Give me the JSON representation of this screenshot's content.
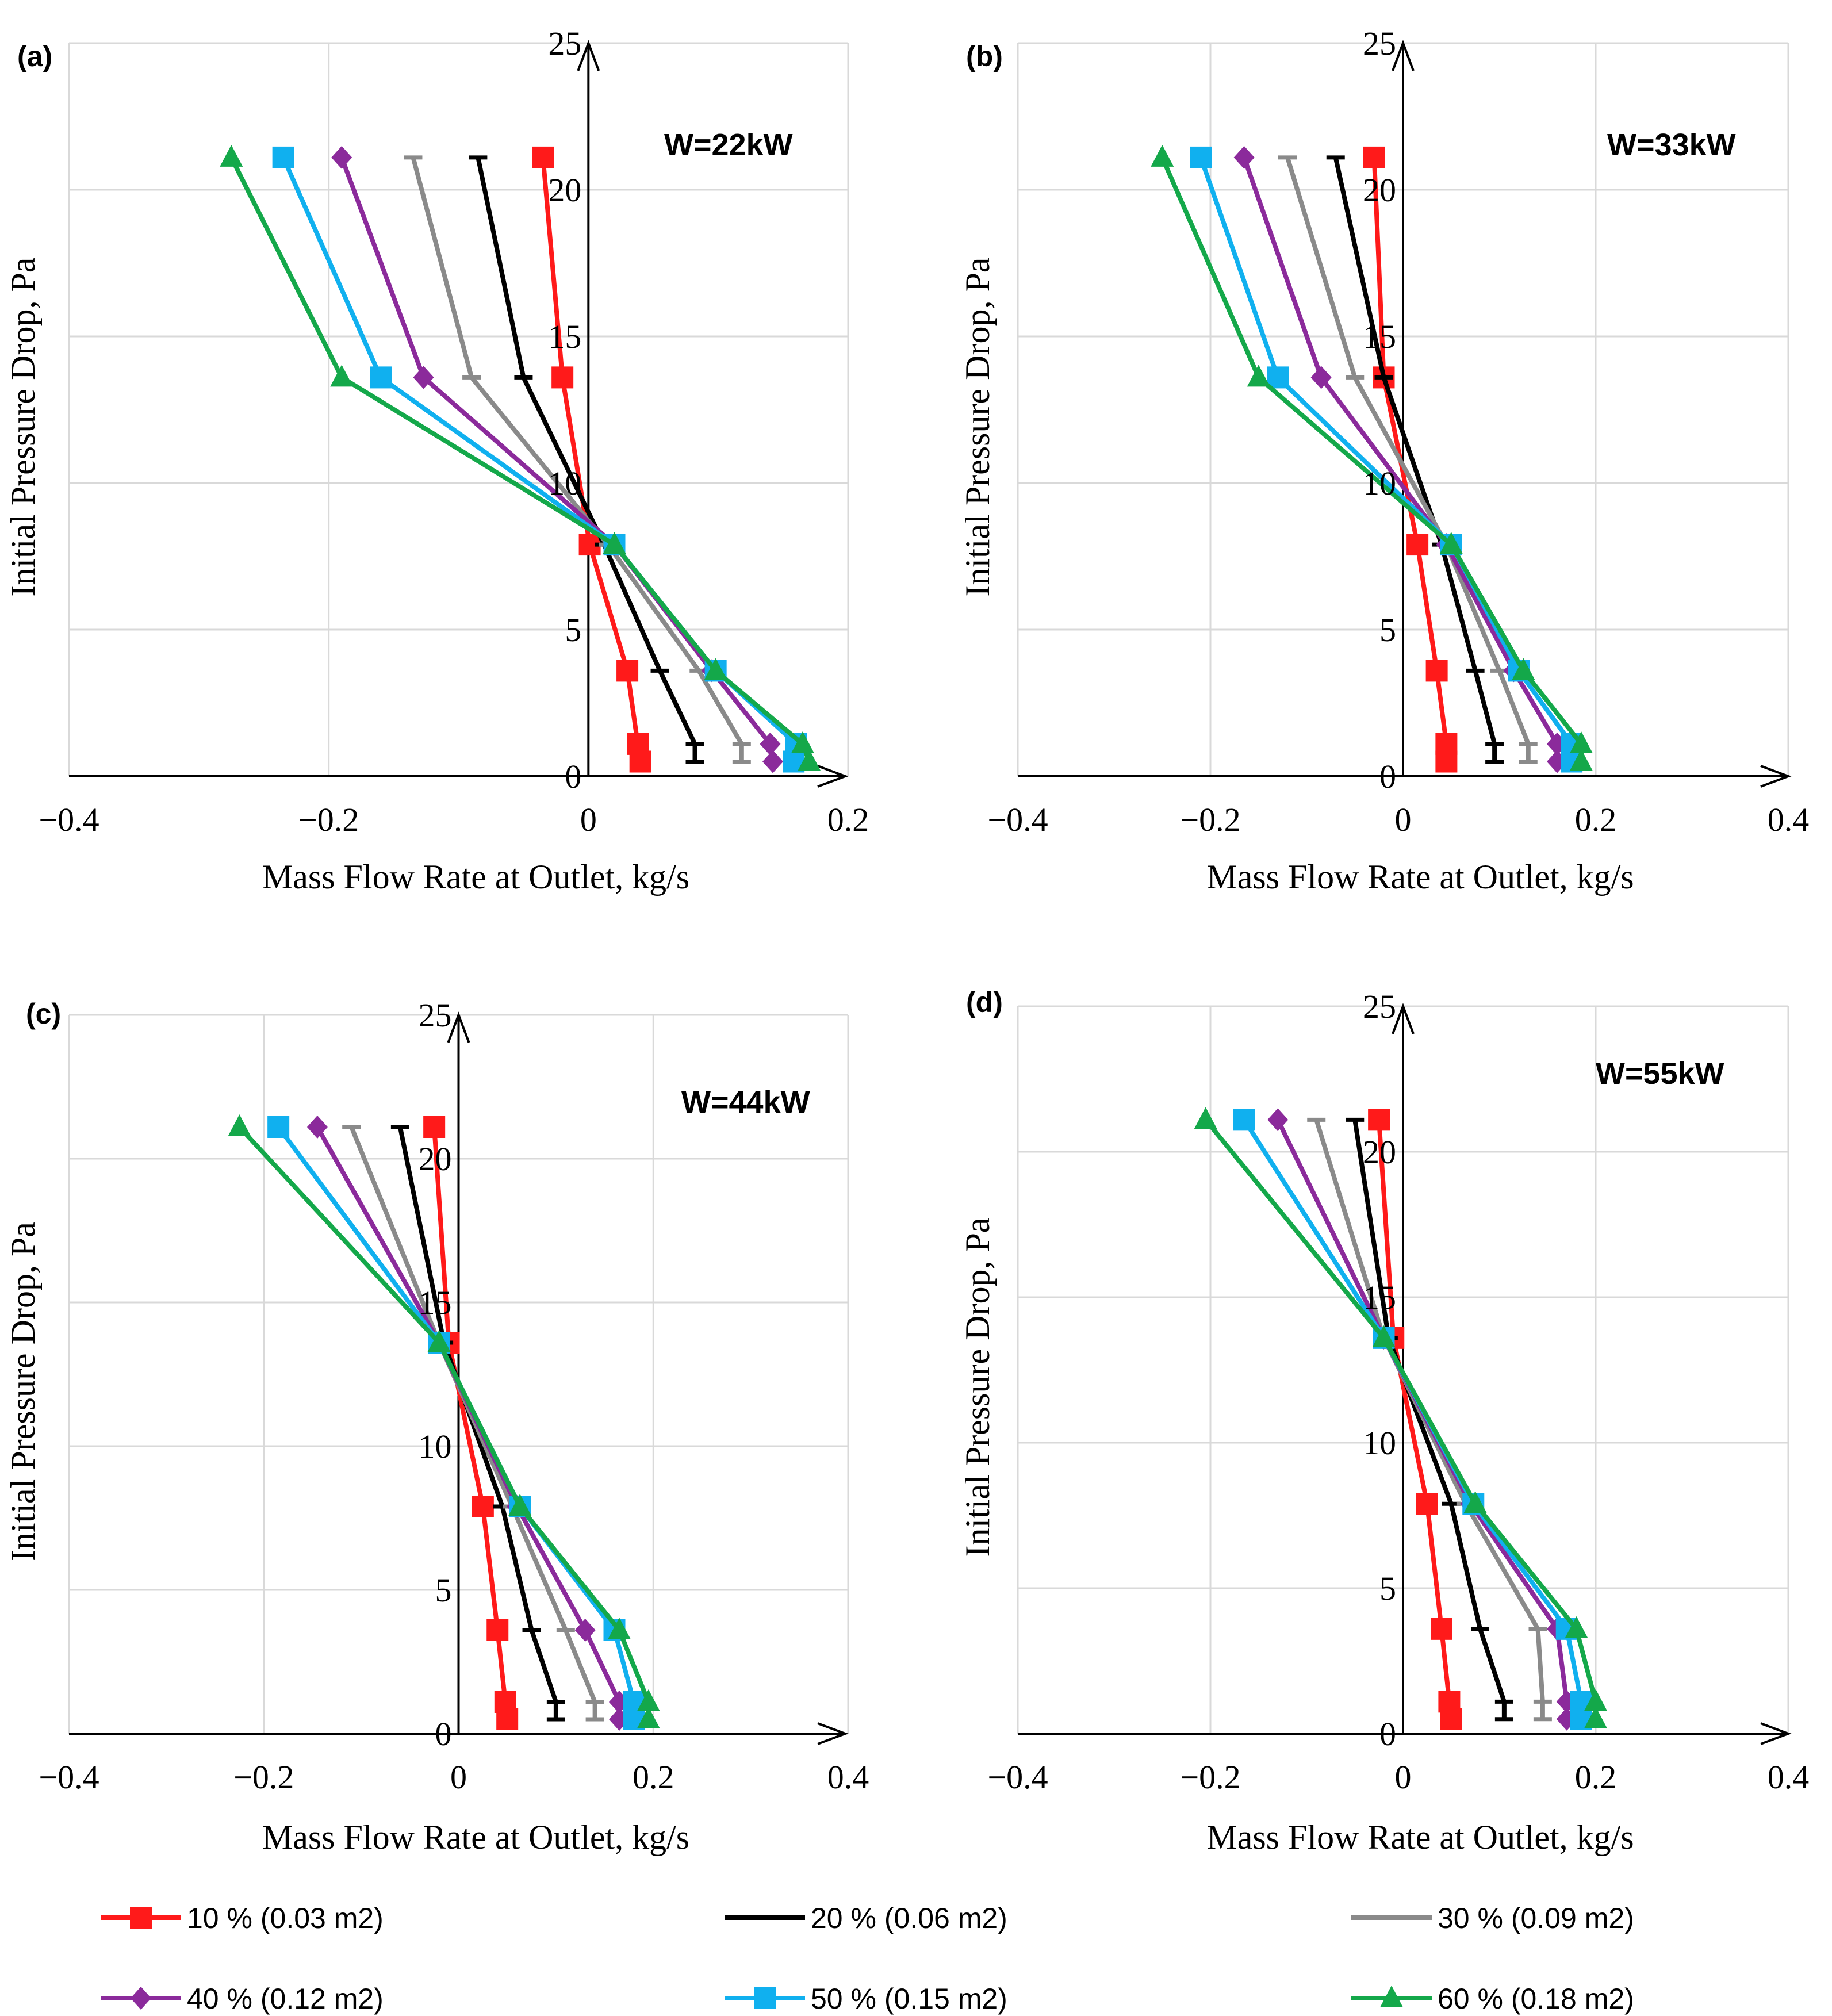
{
  "chart_data": [
    {
      "type": "line",
      "panel_label": "(a)",
      "annotation": "W=22kW",
      "xlabel": "Mass Flow Rate at Outlet, kg/s",
      "ylabel": "Initial Pressure Drop, Pa",
      "xlim": [
        -0.4,
        0.2
      ],
      "ylim": [
        0,
        25
      ],
      "x_ticks": [
        "−0.4",
        "−0.2",
        "0",
        "0.2"
      ],
      "y_ticks": [
        "0",
        "5",
        "10",
        "15",
        "20",
        "25"
      ],
      "grid": true,
      "series": [
        {
          "name": "10 % (0.03 m2)",
          "points": [
            [
              -0.035,
              21.1
            ],
            [
              -0.02,
              13.6
            ],
            [
              0.001,
              7.9
            ],
            [
              0.03,
              3.6
            ],
            [
              0.038,
              1.1
            ],
            [
              0.04,
              0.5
            ]
          ]
        },
        {
          "name": "20 % (0.06 m2)",
          "points": [
            [
              -0.085,
              21.1
            ],
            [
              -0.05,
              13.6
            ],
            [
              0.012,
              7.9
            ],
            [
              0.055,
              3.6
            ],
            [
              0.082,
              1.1
            ],
            [
              0.082,
              0.5
            ]
          ]
        },
        {
          "name": "30 % (0.09 m2)",
          "points": [
            [
              -0.135,
              21.1
            ],
            [
              -0.09,
              13.6
            ],
            [
              0.015,
              7.9
            ],
            [
              0.085,
              3.6
            ],
            [
              0.118,
              1.1
            ],
            [
              0.118,
              0.5
            ]
          ]
        },
        {
          "name": "40 % (0.12 m2)",
          "points": [
            [
              -0.19,
              21.1
            ],
            [
              -0.127,
              13.6
            ],
            [
              0.02,
              7.9
            ],
            [
              0.095,
              3.6
            ],
            [
              0.14,
              1.1
            ],
            [
              0.142,
              0.5
            ]
          ]
        },
        {
          "name": "50 % (0.15 m2)",
          "points": [
            [
              -0.235,
              21.1
            ],
            [
              -0.16,
              13.6
            ],
            [
              0.02,
              7.9
            ],
            [
              0.098,
              3.6
            ],
            [
              0.16,
              1.1
            ],
            [
              0.158,
              0.5
            ]
          ]
        },
        {
          "name": "60 % (0.18 m2)",
          "points": [
            [
              -0.275,
              21.1
            ],
            [
              -0.19,
              13.6
            ],
            [
              0.02,
              7.9
            ],
            [
              0.098,
              3.6
            ],
            [
              0.165,
              1.1
            ],
            [
              0.17,
              0.5
            ]
          ]
        }
      ]
    },
    {
      "type": "line",
      "panel_label": "(b)",
      "annotation": "W=33kW",
      "xlabel": "Mass Flow Rate at Outlet, kg/s",
      "ylabel": "Initial Pressure Drop, Pa",
      "xlim": [
        -0.4,
        0.4
      ],
      "ylim": [
        0,
        25
      ],
      "x_ticks": [
        "−0.4",
        "−0.2",
        "0",
        "0.2",
        "0.4"
      ],
      "y_ticks": [
        "0",
        "5",
        "10",
        "15",
        "20",
        "25"
      ],
      "grid": true,
      "series": [
        {
          "name": "10 % (0.03 m2)",
          "points": [
            [
              -0.03,
              21.1
            ],
            [
              -0.02,
              13.6
            ],
            [
              0.015,
              7.9
            ],
            [
              0.035,
              3.6
            ],
            [
              0.045,
              1.1
            ],
            [
              0.045,
              0.5
            ]
          ]
        },
        {
          "name": "20 % (0.06 m2)",
          "points": [
            [
              -0.07,
              21.1
            ],
            [
              -0.02,
              13.6
            ],
            [
              0.04,
              7.9
            ],
            [
              0.075,
              3.6
            ],
            [
              0.095,
              1.1
            ],
            [
              0.095,
              0.5
            ]
          ]
        },
        {
          "name": "30 % (0.09 m2)",
          "points": [
            [
              -0.12,
              21.1
            ],
            [
              -0.05,
              13.6
            ],
            [
              0.045,
              7.9
            ],
            [
              0.1,
              3.6
            ],
            [
              0.13,
              1.1
            ],
            [
              0.13,
              0.5
            ]
          ]
        },
        {
          "name": "40 % (0.12 m2)",
          "points": [
            [
              -0.165,
              21.1
            ],
            [
              -0.085,
              13.6
            ],
            [
              0.045,
              7.9
            ],
            [
              0.115,
              3.6
            ],
            [
              0.16,
              1.1
            ],
            [
              0.16,
              0.5
            ]
          ]
        },
        {
          "name": "50 % (0.15 m2)",
          "points": [
            [
              -0.21,
              21.1
            ],
            [
              -0.13,
              13.6
            ],
            [
              0.05,
              7.9
            ],
            [
              0.12,
              3.6
            ],
            [
              0.175,
              1.1
            ],
            [
              0.175,
              0.5
            ]
          ]
        },
        {
          "name": "60 % (0.18 m2)",
          "points": [
            [
              -0.25,
              21.1
            ],
            [
              -0.15,
              13.6
            ],
            [
              0.05,
              7.9
            ],
            [
              0.125,
              3.6
            ],
            [
              0.185,
              1.1
            ],
            [
              0.185,
              0.5
            ]
          ]
        }
      ]
    },
    {
      "type": "line",
      "panel_label": "(c)",
      "annotation": "W=44kW",
      "xlabel": "Mass Flow Rate at Outlet, kg/s",
      "ylabel": "Initial Pressure Drop, Pa",
      "xlim": [
        -0.4,
        0.4
      ],
      "ylim": [
        0,
        25
      ],
      "x_ticks": [
        "−0.4",
        "−0.2",
        "0",
        "0.2",
        "0.4"
      ],
      "y_ticks": [
        "0",
        "5",
        "10",
        "15",
        "20",
        "25"
      ],
      "grid": true,
      "series": [
        {
          "name": "10 % (0.03 m2)",
          "points": [
            [
              -0.025,
              21.1
            ],
            [
              -0.01,
              13.6
            ],
            [
              0.025,
              7.9
            ],
            [
              0.04,
              3.6
            ],
            [
              0.048,
              1.1
            ],
            [
              0.05,
              0.5
            ]
          ]
        },
        {
          "name": "20 % (0.06 m2)",
          "points": [
            [
              -0.06,
              21.1
            ],
            [
              -0.015,
              13.6
            ],
            [
              0.045,
              7.9
            ],
            [
              0.075,
              3.6
            ],
            [
              0.1,
              1.1
            ],
            [
              0.1,
              0.5
            ]
          ]
        },
        {
          "name": "30 % (0.09 m2)",
          "points": [
            [
              -0.11,
              21.1
            ],
            [
              -0.02,
              13.6
            ],
            [
              0.055,
              7.9
            ],
            [
              0.11,
              3.6
            ],
            [
              0.14,
              1.1
            ],
            [
              0.14,
              0.5
            ]
          ]
        },
        {
          "name": "40 % (0.12 m2)",
          "points": [
            [
              -0.145,
              21.1
            ],
            [
              -0.02,
              13.6
            ],
            [
              0.06,
              7.9
            ],
            [
              0.13,
              3.6
            ],
            [
              0.165,
              1.1
            ],
            [
              0.165,
              0.5
            ]
          ]
        },
        {
          "name": "50 % (0.15 m2)",
          "points": [
            [
              -0.185,
              21.1
            ],
            [
              -0.02,
              13.6
            ],
            [
              0.063,
              7.9
            ],
            [
              0.16,
              3.6
            ],
            [
              0.18,
              1.1
            ],
            [
              0.18,
              0.5
            ]
          ]
        },
        {
          "name": "60 % (0.18 m2)",
          "points": [
            [
              -0.225,
              21.1
            ],
            [
              -0.02,
              13.6
            ],
            [
              0.063,
              7.9
            ],
            [
              0.165,
              3.6
            ],
            [
              0.195,
              1.1
            ],
            [
              0.195,
              0.5
            ]
          ]
        }
      ]
    },
    {
      "type": "line",
      "panel_label": "(d)",
      "annotation": "W=55kW",
      "xlabel": "Mass Flow Rate at Outlet, kg/s",
      "ylabel": "Initial Pressure Drop, Pa",
      "xlim": [
        -0.4,
        0.4
      ],
      "ylim": [
        0,
        25
      ],
      "x_ticks": [
        "−0.4",
        "−0.2",
        "0",
        "0.2",
        "0.4"
      ],
      "y_ticks": [
        "0",
        "5",
        "10",
        "15",
        "20",
        "25"
      ],
      "grid": true,
      "series": [
        {
          "name": "10 % (0.03 m2)",
          "points": [
            [
              -0.025,
              21.1
            ],
            [
              -0.01,
              13.6
            ],
            [
              0.025,
              7.9
            ],
            [
              0.04,
              3.6
            ],
            [
              0.048,
              1.1
            ],
            [
              0.05,
              0.5
            ]
          ]
        },
        {
          "name": "20 % (0.06 m2)",
          "points": [
            [
              -0.05,
              21.1
            ],
            [
              -0.015,
              13.6
            ],
            [
              0.05,
              7.9
            ],
            [
              0.08,
              3.6
            ],
            [
              0.105,
              1.1
            ],
            [
              0.105,
              0.5
            ]
          ]
        },
        {
          "name": "30 % (0.09 m2)",
          "points": [
            [
              -0.09,
              21.1
            ],
            [
              -0.02,
              13.6
            ],
            [
              0.065,
              7.9
            ],
            [
              0.14,
              3.6
            ],
            [
              0.145,
              1.1
            ],
            [
              0.145,
              0.5
            ]
          ]
        },
        {
          "name": "40 % (0.12 m2)",
          "points": [
            [
              -0.13,
              21.1
            ],
            [
              -0.02,
              13.6
            ],
            [
              0.07,
              7.9
            ],
            [
              0.16,
              3.6
            ],
            [
              0.17,
              1.1
            ],
            [
              0.17,
              0.5
            ]
          ]
        },
        {
          "name": "50 % (0.15 m2)",
          "points": [
            [
              -0.165,
              21.1
            ],
            [
              -0.02,
              13.6
            ],
            [
              0.073,
              7.9
            ],
            [
              0.17,
              3.6
            ],
            [
              0.185,
              1.1
            ],
            [
              0.185,
              0.5
            ]
          ]
        },
        {
          "name": "60 % (0.18 m2)",
          "points": [
            [
              -0.205,
              21.1
            ],
            [
              -0.02,
              13.6
            ],
            [
              0.075,
              7.9
            ],
            [
              0.18,
              3.6
            ],
            [
              0.2,
              1.1
            ],
            [
              0.2,
              0.5
            ]
          ]
        }
      ]
    }
  ],
  "legend": {
    "placement": "bottom",
    "entries": [
      {
        "label": "10 % (0.03 m2)",
        "color": "#ff1a1a",
        "marker": "square"
      },
      {
        "label": "20 % (0.06 m2)",
        "color": "#000000",
        "marker": "dash"
      },
      {
        "label": "30 % (0.09 m2)",
        "color": "#8a8a8a",
        "marker": "dash"
      },
      {
        "label": "40 % (0.12 m2)",
        "color": "#8b2a9b",
        "marker": "diamond"
      },
      {
        "label": "50 % (0.15 m2)",
        "color": "#10b0ef",
        "marker": "square"
      },
      {
        "label": "60 % (0.18 m2)",
        "color": "#14a84a",
        "marker": "triangle"
      }
    ]
  }
}
